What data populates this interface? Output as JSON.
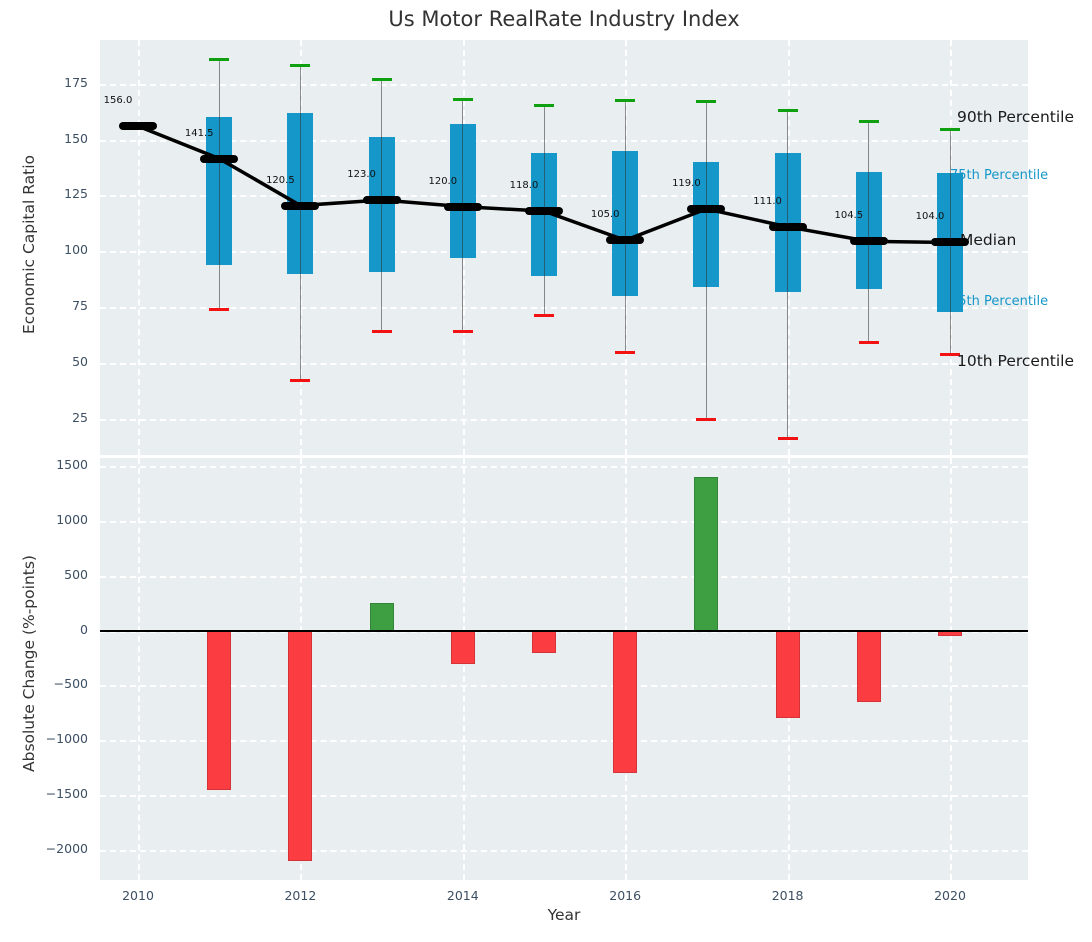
{
  "title": "Us Motor RealRate Industry Index",
  "chart_data": [
    {
      "type": "boxplot",
      "panel": "top",
      "title": "Us Motor RealRate Industry Index",
      "ylabel": "Economic Capital Ratio",
      "ylim": [
        9,
        194.5
      ],
      "grid": "white-dashed",
      "legend_position": "right-annotations",
      "yticks": [
        {
          "value": 175,
          "label": "175"
        },
        {
          "value": 150,
          "label": "150"
        },
        {
          "value": 125,
          "label": "125"
        },
        {
          "value": 100,
          "label": "100"
        },
        {
          "value": 75,
          "label": "75"
        },
        {
          "value": 50,
          "label": "50"
        },
        {
          "value": 25,
          "label": "25"
        }
      ],
      "x": [
        2010,
        2011,
        2012,
        2013,
        2014,
        2015,
        2016,
        2017,
        2018,
        2019,
        2020
      ],
      "median": [
        156.0,
        141.5,
        120.5,
        123.0,
        120.0,
        118.0,
        105.0,
        119.0,
        111.0,
        104.5,
        104.0
      ],
      "median_labels": [
        "156.0",
        "141.5",
        "120.5",
        "123.0",
        "120.0",
        "118.0",
        "105.0",
        "119.0",
        "111.0",
        "104.5",
        "104.0"
      ],
      "p10": [
        null,
        74,
        42.5,
        64,
        64,
        71.5,
        55,
        25,
        16.5,
        59.5,
        54
      ],
      "p25": [
        null,
        94,
        90,
        91,
        97,
        89,
        80,
        84,
        82,
        83,
        73
      ],
      "p75": [
        null,
        160,
        162,
        151,
        157,
        144,
        145,
        140,
        144,
        135.5,
        135
      ],
      "p90": [
        null,
        186,
        183,
        177,
        168,
        165,
        167.5,
        167,
        163,
        158,
        154.5
      ],
      "colors": {
        "box": "#1697c9",
        "whisker": "#787878",
        "cap_top": "#0ea00e",
        "cap_bottom": "#f31212",
        "median_line": "#000000",
        "panel_bg": "#e9eef0",
        "grid": "#ffffff",
        "tick": "#3d4f63",
        "title": "#333333"
      },
      "annotations": [
        {
          "label": "90th Percentile",
          "value": 159,
          "color": "#1a1a1a",
          "size": 15.5,
          "x": 957,
          "layer": "front"
        },
        {
          "label": "75th Percentile",
          "value": 133,
          "color": "#1697c9",
          "size": 13,
          "x": 950,
          "layer": "back"
        },
        {
          "label": "Median",
          "value": 104,
          "color": "#1a1a1a",
          "size": 15.5,
          "x": 960,
          "layer": "front"
        },
        {
          "label": "25th Percentile",
          "value": 77,
          "color": "#1697c9",
          "size": 13,
          "x": 950,
          "layer": "back"
        },
        {
          "label": "10th Percentile",
          "value": 50,
          "color": "#1a1a1a",
          "size": 15.5,
          "x": 957,
          "layer": "front"
        }
      ]
    },
    {
      "type": "bar",
      "panel": "bottom",
      "ylabel": "Absolute Change (%-points)",
      "xlabel": "Year",
      "ylim": [
        -2275,
        1575
      ],
      "grid": "white-dashed",
      "yticks": [
        {
          "value": 1500,
          "label": "1500"
        },
        {
          "value": 1000,
          "label": "1000"
        },
        {
          "value": 500,
          "label": "500"
        },
        {
          "value": 0,
          "label": "0"
        },
        {
          "value": -500,
          "label": "−500"
        },
        {
          "value": -1000,
          "label": "−1000"
        },
        {
          "value": -1500,
          "label": "−1500"
        },
        {
          "value": -2000,
          "label": "−2000"
        }
      ],
      "xticks": [
        {
          "value": 2010,
          "label": "2010"
        },
        {
          "value": 2012,
          "label": "2012"
        },
        {
          "value": 2014,
          "label": "2014"
        },
        {
          "value": 2016,
          "label": "2016"
        },
        {
          "value": 2018,
          "label": "2018"
        },
        {
          "value": 2020,
          "label": "2020"
        }
      ],
      "categories": [
        2011,
        2012,
        2013,
        2014,
        2015,
        2016,
        2017,
        2018,
        2019,
        2020
      ],
      "values": [
        -1450,
        -2100,
        250,
        -300,
        -200,
        -1300,
        1400,
        -800,
        -650,
        -50
      ],
      "positive_color": "#3d9e42",
      "negative_color": "#fb3c41",
      "zero_line_color": "#000000"
    }
  ]
}
